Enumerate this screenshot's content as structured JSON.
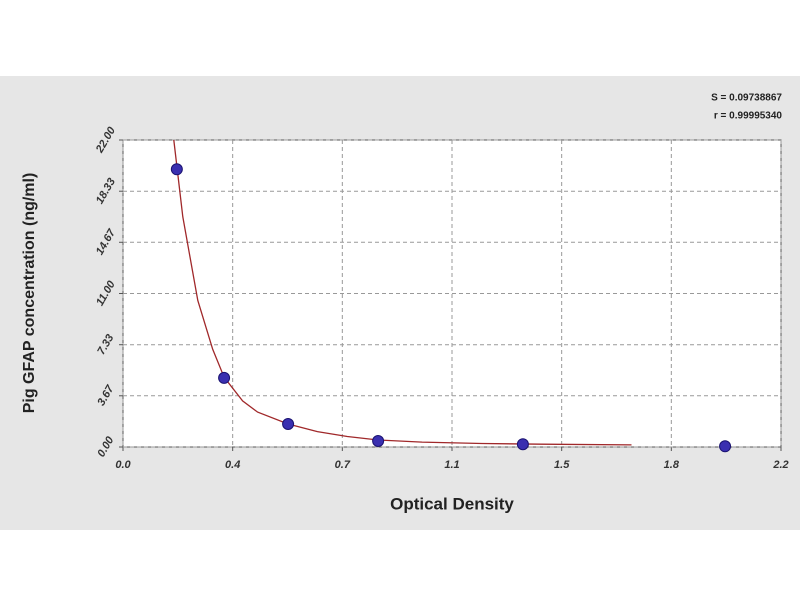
{
  "chart_data": {
    "type": "scatter",
    "xlabel": "Optical Density",
    "ylabel": "Pig GFAP concentration (ng/ml)",
    "annotations": [
      "S = 0.09738867",
      "r = 0.99995340"
    ],
    "x": [
      0.18,
      0.338,
      0.552,
      0.853,
      1.337,
      2.013
    ],
    "values": [
      19.9,
      4.95,
      1.65,
      0.43,
      0.2,
      0.05
    ],
    "color": "#3a2fb0",
    "curve": {
      "color": "#a0282a",
      "x": [
        0.17,
        0.2,
        0.25,
        0.3,
        0.338,
        0.4,
        0.45,
        0.552,
        0.65,
        0.75,
        0.853,
        1.0,
        1.2,
        1.4,
        1.7
      ],
      "values": [
        22,
        16.5,
        10.5,
        7,
        5,
        3.3,
        2.5,
        1.65,
        1.1,
        0.75,
        0.5,
        0.35,
        0.25,
        0.2,
        0.15
      ]
    },
    "xlim": [
      0,
      2.2
    ],
    "xticks": [
      {
        "value": 0,
        "label": "0.0"
      },
      {
        "value": 0.3667,
        "label": "0.4"
      },
      {
        "value": 0.7333,
        "label": "0.7"
      },
      1.1,
      {
        "value": 1.4667,
        "label": "1.5"
      },
      {
        "value": 1.8333,
        "label": "1.8"
      },
      2.2
    ],
    "ylim": [
      0,
      22
    ],
    "yticks": [
      {
        "value": 0,
        "label": "0.00"
      },
      3.67,
      7.33,
      {
        "value": 11,
        "label": "11.00"
      },
      14.67,
      18.33,
      {
        "value": 22,
        "label": "22.00"
      }
    ],
    "grid": true
  }
}
